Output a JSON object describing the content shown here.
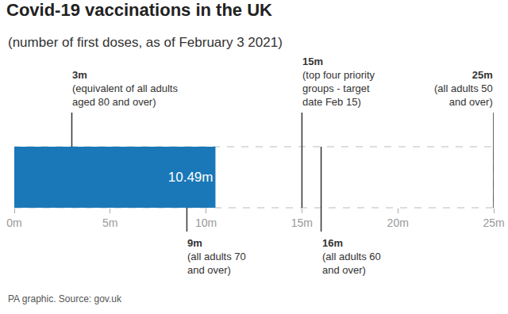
{
  "chart_data": {
    "type": "bar",
    "orientation": "horizontal",
    "title": "Covid-19 vaccinations in the UK",
    "subtitle": "(number of first doses, as of February 3 2021)",
    "source": "PA graphic. Source: gov.uk",
    "values": [
      10.49
    ],
    "value_labels": [
      "10.49m"
    ],
    "data_labels": true,
    "color": "#1a78b8",
    "xlim": [
      0,
      25
    ],
    "xticks": [
      {
        "value": 0,
        "label": "0m"
      },
      {
        "value": 5,
        "label": "5m"
      },
      {
        "value": 10,
        "label": "10m"
      },
      {
        "value": 15,
        "label": "15m"
      },
      {
        "value": 20,
        "label": "20m"
      },
      {
        "value": 25,
        "label": "25m"
      }
    ],
    "grid": false,
    "annotations": [
      {
        "x": 3,
        "label": "3m",
        "text": [
          "(equivalent of all adults",
          "aged 80 and over)"
        ]
      },
      {
        "x": 9,
        "label": "9m",
        "text": [
          "(all adults 70",
          "and over)"
        ]
      },
      {
        "x": 15,
        "label": "15m",
        "text": [
          "(top four priority",
          "groups - target",
          "date Feb 15)"
        ]
      },
      {
        "x": 16,
        "label": "16m",
        "text": [
          "(all adults 60",
          "and over)"
        ]
      },
      {
        "x": 25,
        "label": "25m",
        "text": [
          "(all adults 50",
          "and over)"
        ]
      }
    ]
  }
}
